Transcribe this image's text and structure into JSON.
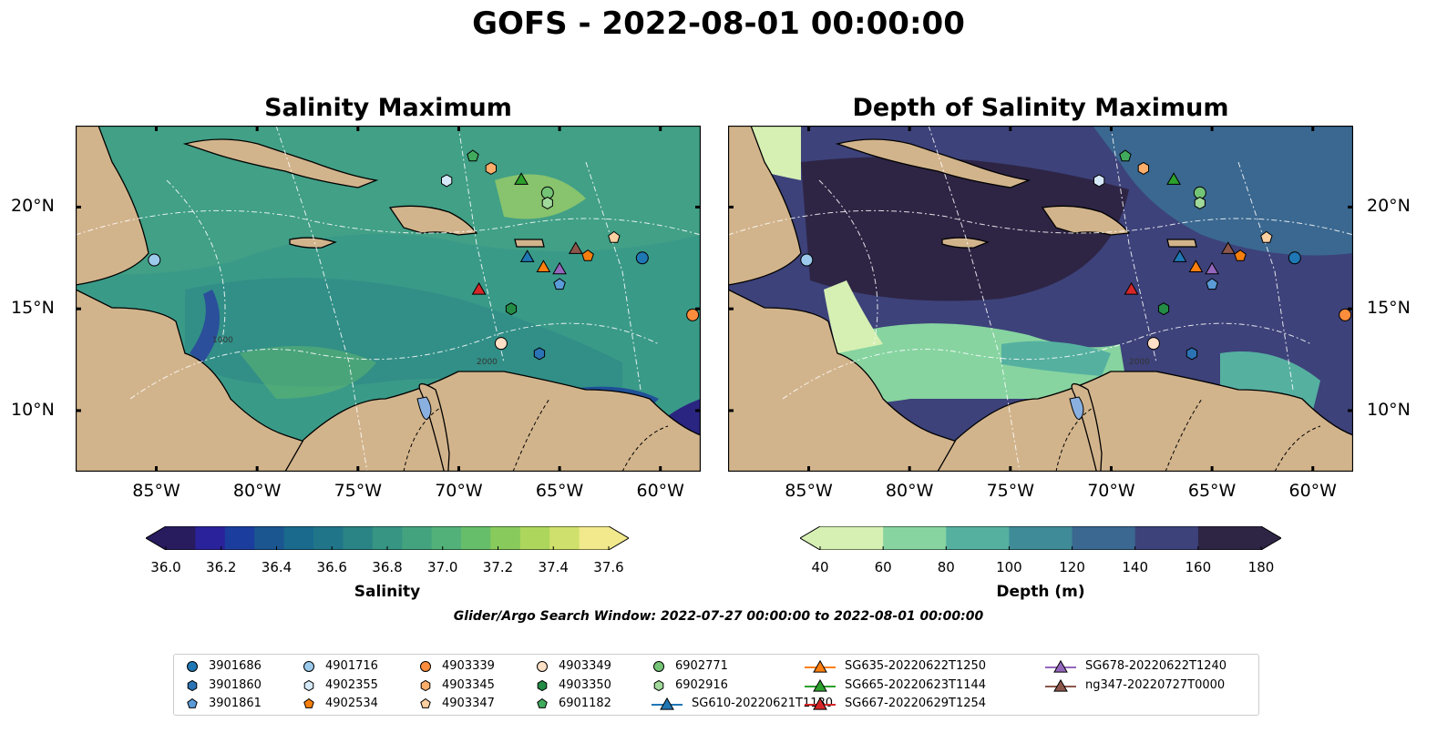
{
  "title": "GOFS - 2022-08-01 00:00:00",
  "panels": [
    {
      "title": "Salinity Maximum"
    },
    {
      "title": "Depth of Salinity Maximum"
    }
  ],
  "axes": {
    "lon_ticks": [
      "85°W",
      "80°W",
      "75°W",
      "70°W",
      "65°W",
      "60°W"
    ],
    "lat_ticks": [
      "20°N",
      "15°N",
      "10°N"
    ],
    "lon_range": [
      -89,
      -58
    ],
    "lat_range": [
      7,
      24
    ]
  },
  "contour_labels": [
    "1000",
    "1000",
    "1000",
    "1000",
    "2000",
    "2000",
    "2000",
    "2000",
    "2000",
    "2000"
  ],
  "colorbars": [
    {
      "label": "Salinity",
      "ticks": [
        "36.0",
        "36.2",
        "36.4",
        "36.6",
        "36.8",
        "37.0",
        "37.2",
        "37.4",
        "37.6"
      ],
      "colors": [
        "#281b5e",
        "#2a229a",
        "#1b3e9e",
        "#1b5690",
        "#1a6a8e",
        "#207589",
        "#2a8486",
        "#369583",
        "#43a37e",
        "#52b178",
        "#67be6a",
        "#88cb5c",
        "#add65c",
        "#d0e06c",
        "#f1e98c"
      ]
    },
    {
      "label": "Depth (m)",
      "ticks": [
        "40",
        "60",
        "80",
        "100",
        "120",
        "140",
        "160",
        "180"
      ],
      "colors": [
        "#d6f0b4",
        "#87d4a0",
        "#55b0a0",
        "#3f8b98",
        "#3a6890",
        "#3d427a",
        "#2e2545"
      ]
    }
  ],
  "search_window": "Glider/Argo Search Window: 2022-07-27 00:00:00 to 2022-08-01 00:00:00",
  "legend": [
    {
      "label": "3901686",
      "marker": "circle",
      "color": "#1f77b4"
    },
    {
      "label": "3901860",
      "marker": "hexagon",
      "color": "#2b73b4"
    },
    {
      "label": "3901861",
      "marker": "pentagon",
      "color": "#5a9bd8"
    },
    {
      "label": "4901716",
      "marker": "circle",
      "color": "#9ccaec"
    },
    {
      "label": "4902355",
      "marker": "hexagon",
      "color": "#d5e9f8"
    },
    {
      "label": "4902534",
      "marker": "pentagon",
      "color": "#f57f0e"
    },
    {
      "label": "4903339",
      "marker": "circle",
      "color": "#fd8d3c"
    },
    {
      "label": "4903345",
      "marker": "hexagon",
      "color": "#fdae6b"
    },
    {
      "label": "4903347",
      "marker": "pentagon",
      "color": "#fdd0a2"
    },
    {
      "label": "4903349",
      "marker": "circle",
      "color": "#fde0c5"
    },
    {
      "label": "4903350",
      "marker": "hexagon",
      "color": "#238b45"
    },
    {
      "label": "6901182",
      "marker": "pentagon",
      "color": "#41ab5d"
    },
    {
      "label": "6902771",
      "marker": "circle",
      "color": "#74c476"
    },
    {
      "label": "6902916",
      "marker": "hexagon",
      "color": "#a1d99b"
    },
    {
      "label": "SG610-20220621T1130",
      "marker": "triangle-line",
      "color": "#1f77b4"
    },
    {
      "label": "SG635-20220622T1250",
      "marker": "triangle-line",
      "color": "#ff7f0e"
    },
    {
      "label": "SG665-20220623T1144",
      "marker": "triangle-line",
      "color": "#2ca02c"
    },
    {
      "label": "SG667-20220629T1254",
      "marker": "triangle-line",
      "color": "#d62728"
    },
    {
      "label": "SG678-20220622T1240",
      "marker": "triangle-line",
      "color": "#9467bd"
    },
    {
      "label": "ng347-20220727T0000",
      "marker": "triangle-line",
      "color": "#8c564b"
    }
  ],
  "observations": [
    {
      "id": "3901686",
      "lon": -60.9,
      "lat": 17.5
    },
    {
      "id": "3901860",
      "lon": -66.0,
      "lat": 12.8
    },
    {
      "id": "3901861",
      "lon": -65.0,
      "lat": 16.2
    },
    {
      "id": "4901716",
      "lon": -85.1,
      "lat": 17.4
    },
    {
      "id": "4902355",
      "lon": -70.6,
      "lat": 21.3
    },
    {
      "id": "4902534",
      "lon": -63.6,
      "lat": 17.6
    },
    {
      "id": "4903339",
      "lon": -58.4,
      "lat": 14.7
    },
    {
      "id": "4903345",
      "lon": -68.4,
      "lat": 21.9
    },
    {
      "id": "4903347",
      "lon": -62.3,
      "lat": 18.5
    },
    {
      "id": "4903349",
      "lon": -67.9,
      "lat": 13.3
    },
    {
      "id": "4903350",
      "lon": -67.4,
      "lat": 15.0
    },
    {
      "id": "6901182",
      "lon": -69.3,
      "lat": 22.5
    },
    {
      "id": "6902771",
      "lon": -65.6,
      "lat": 20.7
    },
    {
      "id": "6902916",
      "lon": -65.6,
      "lat": 20.2
    },
    {
      "id": "SG610-20220621T1130",
      "lon": -66.6,
      "lat": 17.5
    },
    {
      "id": "SG635-20220622T1250",
      "lon": -65.8,
      "lat": 17.0
    },
    {
      "id": "SG665-20220623T1144",
      "lon": -66.9,
      "lat": 21.3
    },
    {
      "id": "SG667-20220629T1254",
      "lon": -69.0,
      "lat": 15.9
    },
    {
      "id": "SG678-20220622T1240",
      "lon": -65.0,
      "lat": 16.9
    },
    {
      "id": "ng347-20220727T0000",
      "lon": -64.2,
      "lat": 17.9
    }
  ]
}
